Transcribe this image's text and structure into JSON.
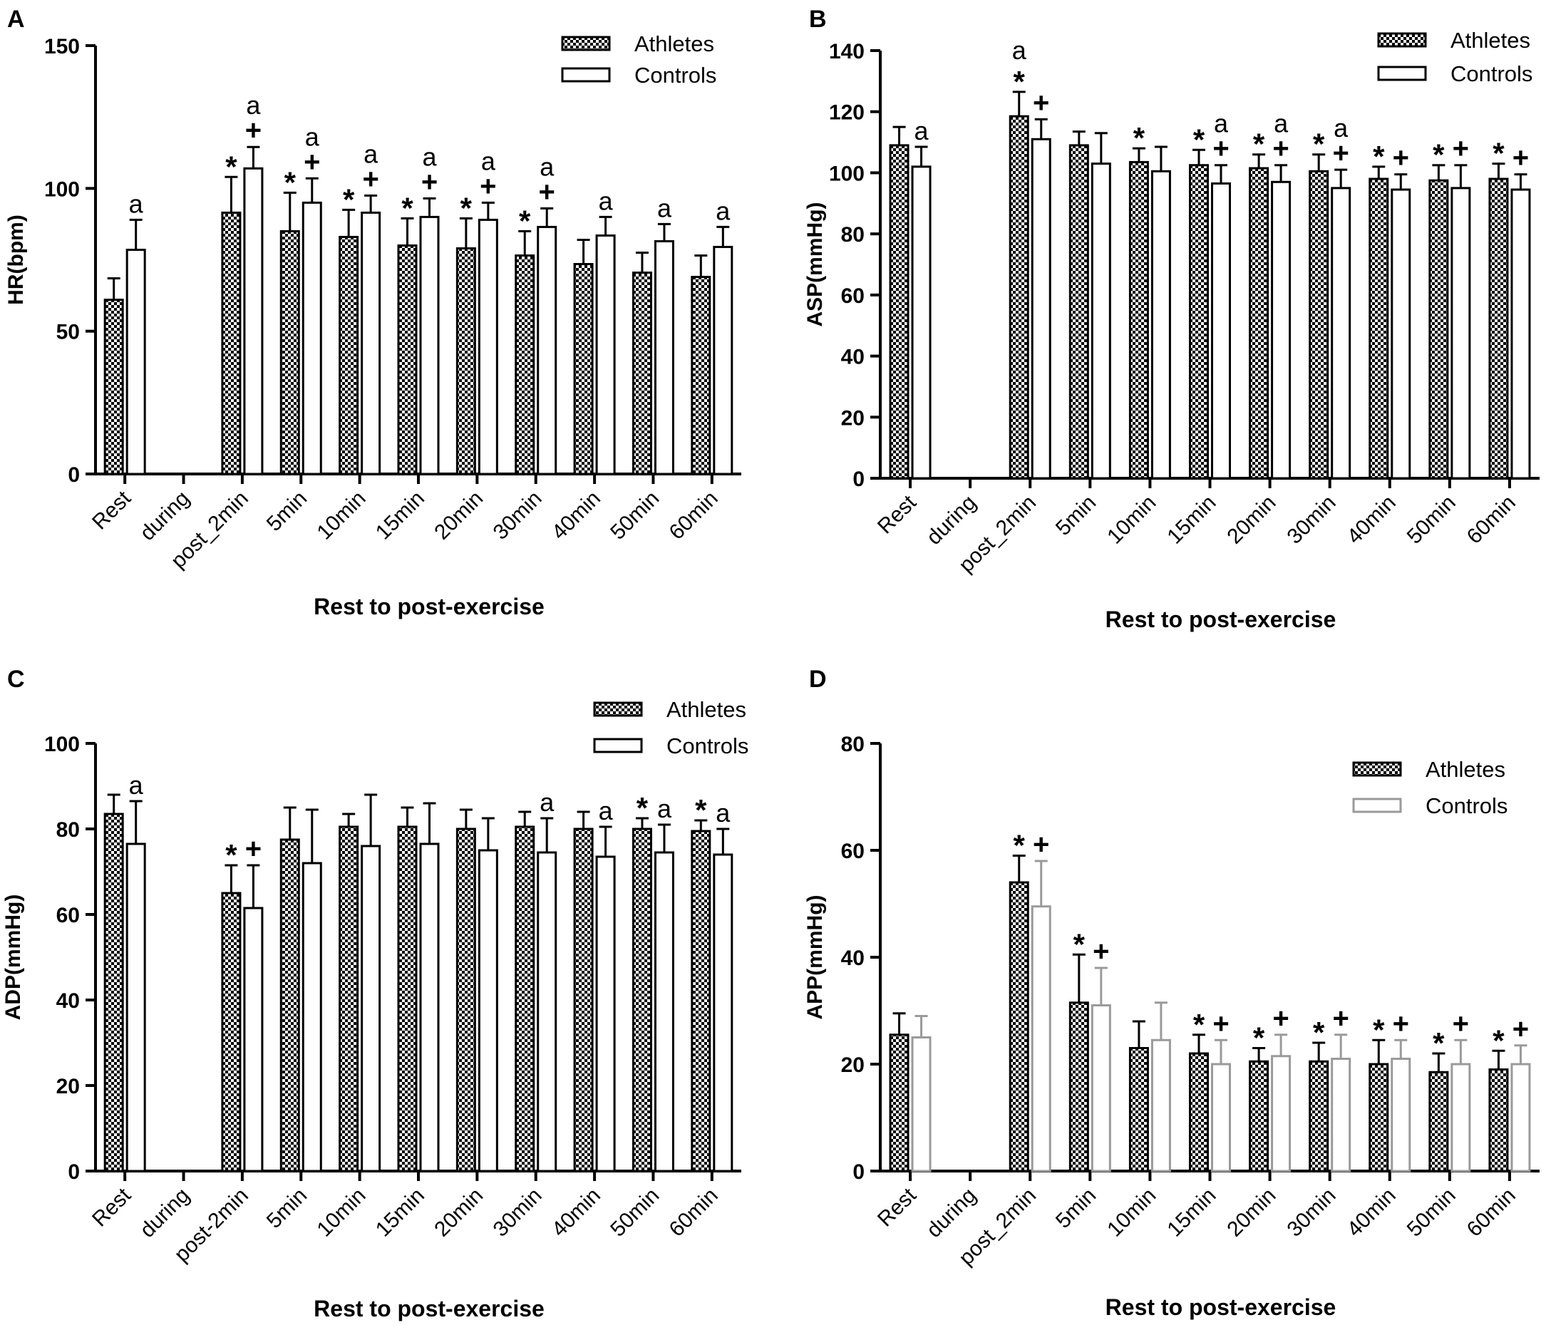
{
  "figure": {
    "title": ""
  },
  "legend": {
    "athletes": "Athletes",
    "controls": "Controls"
  },
  "colors": {
    "axis": "#000000",
    "bar_outline": "#000000",
    "controls_fill": "#ffffff",
    "controls_outline_D": "#9a9a9a",
    "checker_dark": "#000000",
    "checker_light": "#ffffff"
  },
  "chart_data": [
    {
      "panel": "A",
      "type": "bar",
      "title": "",
      "xlabel": "Rest to post-exercise",
      "ylabel": "HR(bpm)",
      "ylim": [
        0,
        150
      ],
      "yticks": [
        0,
        50,
        100,
        150
      ],
      "categories": [
        "Rest",
        "during",
        "post_2min",
        "5min",
        "10min",
        "15min",
        "20min",
        "30min",
        "40min",
        "50min",
        "60min"
      ],
      "series": [
        {
          "name": "Athletes",
          "values": [
            61,
            null,
            91.5,
            85,
            83,
            80,
            79,
            76.5,
            73.5,
            70.5,
            69
          ],
          "errors": [
            7.5,
            null,
            12.5,
            13.5,
            9.5,
            9.5,
            10.5,
            8.5,
            8.5,
            7,
            7.5
          ],
          "annotations": [
            "",
            "",
            "*",
            "*",
            "*",
            "*",
            "*",
            "*",
            "",
            "",
            ""
          ]
        },
        {
          "name": "Controls",
          "values": [
            78.5,
            null,
            107,
            95,
            91.5,
            90,
            89,
            86.5,
            83.5,
            81.5,
            79.5
          ],
          "errors": [
            10.5,
            null,
            7.5,
            8.5,
            6,
            6.5,
            6,
            6.5,
            6.5,
            6,
            7
          ],
          "annotations": [
            "a",
            "",
            "+ a",
            "+ a",
            "+ a",
            "+ a",
            "+ a",
            "+ a",
            "a",
            "a",
            "a"
          ]
        }
      ]
    },
    {
      "panel": "B",
      "type": "bar",
      "title": "",
      "xlabel": "Rest to post-exercise",
      "ylabel": "ASP(mmHg)",
      "ylim": [
        0,
        140
      ],
      "yticks": [
        0,
        20,
        40,
        60,
        80,
        100,
        120,
        140
      ],
      "categories": [
        "Rest",
        "during",
        "post_2min",
        "5min",
        "10min",
        "15min",
        "20min",
        "30min",
        "40min",
        "50min",
        "60min"
      ],
      "series": [
        {
          "name": "Athletes",
          "values": [
            109,
            null,
            118.5,
            109,
            103.5,
            102.5,
            101.5,
            100.5,
            98,
            97.5,
            98
          ],
          "errors": [
            6,
            null,
            8,
            4.5,
            4.5,
            5,
            4.5,
            5.5,
            4,
            5,
            5
          ],
          "annotations": [
            "",
            "",
            "* a",
            "",
            "*",
            "*",
            "*",
            "*",
            "*",
            "*",
            "*"
          ]
        },
        {
          "name": "Controls",
          "values": [
            102,
            null,
            111,
            103,
            100.5,
            96.5,
            97,
            95,
            94.5,
            95,
            94.5
          ],
          "errors": [
            6.5,
            null,
            6.5,
            10,
            8,
            6,
            5.5,
            6,
            5,
            7.5,
            5
          ],
          "annotations": [
            "a",
            "",
            "+",
            "",
            "",
            "+ a",
            "+ a",
            "+ a",
            "+",
            "+",
            "+"
          ]
        }
      ]
    },
    {
      "panel": "C",
      "type": "bar",
      "title": "",
      "xlabel": "Rest to post-exercise",
      "ylabel": "ADP(mmHg)",
      "ylim": [
        0,
        100
      ],
      "yticks": [
        0,
        20,
        40,
        60,
        80,
        100
      ],
      "categories": [
        "Rest",
        "during",
        "post-2min",
        "5min",
        "10min",
        "15min",
        "20min",
        "30min",
        "40min",
        "50min",
        "60min"
      ],
      "series": [
        {
          "name": "Athletes",
          "values": [
            83.5,
            null,
            65,
            77.5,
            80.5,
            80.5,
            80,
            80.5,
            80,
            80,
            79.5
          ],
          "errors": [
            4.5,
            null,
            6.5,
            7.5,
            3,
            4.5,
            4.5,
            3.5,
            4,
            2.5,
            2.5
          ],
          "annotations": [
            "",
            "",
            "*",
            "",
            "",
            "",
            "",
            "",
            "",
            "*",
            "*"
          ]
        },
        {
          "name": "Controls",
          "values": [
            76.5,
            null,
            61.5,
            72,
            76,
            76.5,
            75,
            74.5,
            73.5,
            74.5,
            74
          ],
          "errors": [
            10,
            null,
            10,
            12.5,
            12,
            9.5,
            7.5,
            8,
            7,
            6.5,
            6
          ],
          "annotations": [
            "a",
            "",
            "+",
            "",
            "",
            "",
            "",
            "a",
            "a",
            "a",
            "a"
          ]
        }
      ]
    },
    {
      "panel": "D",
      "type": "bar",
      "title": "",
      "xlabel": "Rest to post-exercise",
      "ylabel": "APP(mmHg)",
      "ylim": [
        0,
        80
      ],
      "yticks": [
        0,
        20,
        40,
        60,
        80
      ],
      "categories": [
        "Rest",
        "during",
        "post_2min",
        "5min",
        "10min",
        "15min",
        "20min",
        "30min",
        "40min",
        "50min",
        "60min"
      ],
      "series": [
        {
          "name": "Athletes",
          "values": [
            25.5,
            null,
            54,
            31.5,
            23,
            22,
            20.5,
            20.5,
            20,
            18.5,
            19
          ],
          "errors": [
            4,
            null,
            5,
            9,
            5,
            3.5,
            2.5,
            3.5,
            4.5,
            3.5,
            3.5
          ],
          "annotations": [
            "",
            "",
            "*",
            "*",
            "",
            "*",
            "*",
            "*",
            "*",
            "*",
            "*"
          ]
        },
        {
          "name": "Controls",
          "values": [
            25,
            null,
            49.5,
            31,
            24.5,
            20,
            21.5,
            21,
            21,
            20,
            20
          ],
          "errors": [
            4,
            null,
            8.5,
            7,
            7,
            4.5,
            4,
            4.5,
            3.5,
            4.5,
            3.5
          ],
          "annotations": [
            "",
            "",
            "+",
            "+",
            "",
            "+",
            "+",
            "+",
            "+",
            "+",
            "+"
          ]
        }
      ]
    }
  ]
}
